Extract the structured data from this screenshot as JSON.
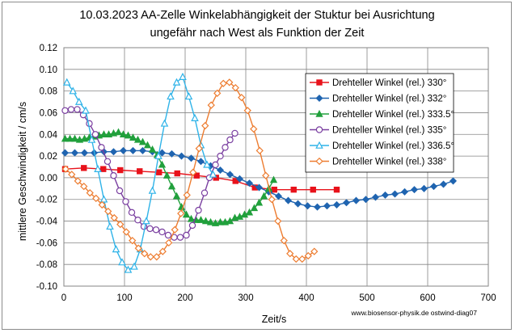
{
  "chart_data": {
    "type": "line",
    "title_line1": "10.03.2023  AA-Zelle Winkelabhängigkeit der Stuktur bei Ausrichtung",
    "title_line2": "ungefähr nach West als Funktion der Zeit",
    "xlabel": "Zeit/s",
    "ylabel": "mittlere Geschwindigkeit  / cm/s",
    "xlim": [
      0,
      700
    ],
    "ylim": [
      -0.1,
      0.12
    ],
    "x_ticks": [
      0,
      100,
      200,
      300,
      400,
      500,
      600,
      700
    ],
    "y_ticks": [
      -0.1,
      -0.08,
      -0.06,
      -0.04,
      -0.02,
      0.0,
      0.02,
      0.04,
      0.06,
      0.08,
      0.1,
      0.12
    ],
    "x_tick_labels": [
      "0",
      "100",
      "200",
      "300",
      "400",
      "500",
      "600",
      "700"
    ],
    "y_tick_labels": [
      "-0.10",
      "-0.08",
      "-0.06",
      "-0.04",
      "-0.02",
      "0.00",
      "0.02",
      "0.04",
      "0.06",
      "0.08",
      "0.10",
      "0.12"
    ],
    "grid": true,
    "legend_position": "top-right",
    "source_note": "www.biosensor-physik.de  ostwind-diag07",
    "series": [
      {
        "name": "Drehteller Winkel (rel.) 330°",
        "color": "#e8121b",
        "marker": "square",
        "x": [
          2,
          33,
          65,
          93,
          125,
          157,
          187,
          219,
          251,
          283,
          315,
          347,
          379,
          411,
          450
        ],
        "y": [
          0.008,
          0.009,
          0.008,
          0.007,
          0.006,
          0.005,
          0.004,
          0.002,
          0.0,
          -0.003,
          -0.009,
          -0.011,
          -0.011,
          -0.011,
          -0.011
        ]
      },
      {
        "name": "Drehteller Winkel (rel.) 332°",
        "color": "#1f64b0",
        "marker": "diamond",
        "x": [
          2,
          18,
          34,
          50,
          66,
          82,
          98,
          114,
          130,
          146,
          162,
          178,
          194,
          210,
          226,
          242,
          258,
          274,
          290,
          306,
          322,
          338,
          354,
          370,
          386,
          402,
          418,
          434,
          450,
          466,
          482,
          498,
          514,
          530,
          546,
          562,
          578,
          594,
          610,
          626,
          642
        ],
        "y": [
          0.023,
          0.023,
          0.023,
          0.023,
          0.024,
          0.024,
          0.025,
          0.025,
          0.025,
          0.024,
          0.023,
          0.022,
          0.02,
          0.018,
          0.015,
          0.011,
          0.007,
          0.003,
          -0.001,
          -0.005,
          -0.009,
          -0.013,
          -0.017,
          -0.021,
          -0.024,
          -0.026,
          -0.027,
          -0.026,
          -0.025,
          -0.023,
          -0.021,
          -0.02,
          -0.018,
          -0.016,
          -0.015,
          -0.013,
          -0.011,
          -0.01,
          -0.008,
          -0.006,
          -0.003
        ]
      },
      {
        "name": "Drehteller Winkel (rel.) 333.5°",
        "color": "#21a03c",
        "marker": "triangle",
        "x": [
          2,
          10,
          18,
          26,
          34,
          42,
          50,
          58,
          66,
          74,
          82,
          90,
          98,
          106,
          114,
          122,
          130,
          138,
          146,
          154,
          162,
          170,
          178,
          186,
          194,
          202,
          210,
          218,
          226,
          234,
          242,
          250,
          258,
          266,
          274,
          282,
          290,
          298,
          306,
          314,
          322,
          330,
          338,
          346
        ],
        "y": [
          0.036,
          0.036,
          0.036,
          0.035,
          0.036,
          0.037,
          0.038,
          0.039,
          0.04,
          0.04,
          0.041,
          0.042,
          0.04,
          0.039,
          0.037,
          0.035,
          0.033,
          0.03,
          0.026,
          0.021,
          0.012,
          0.002,
          -0.008,
          -0.017,
          -0.027,
          -0.034,
          -0.038,
          -0.039,
          -0.039,
          -0.04,
          -0.041,
          -0.042,
          -0.041,
          -0.041,
          -0.04,
          -0.037,
          -0.036,
          -0.034,
          -0.032,
          -0.028,
          -0.023,
          -0.017,
          -0.01,
          -0.002
        ]
      },
      {
        "name": "Drehteller Winkel (rel.) 335°",
        "color": "#7a3fa0",
        "marker": "circle",
        "x": [
          2,
          12,
          22,
          32,
          42,
          52,
          62,
          72,
          82,
          92,
          102,
          112,
          122,
          132,
          142,
          152,
          162,
          172,
          182,
          192,
          202,
          212,
          222,
          232,
          240,
          250,
          258,
          266,
          274,
          282
        ],
        "y": [
          0.062,
          0.063,
          0.063,
          0.058,
          0.05,
          0.04,
          0.028,
          0.015,
          0.002,
          -0.012,
          -0.022,
          -0.032,
          -0.039,
          -0.045,
          -0.047,
          -0.048,
          -0.05,
          -0.053,
          -0.055,
          -0.055,
          -0.053,
          -0.044,
          -0.03,
          -0.014,
          0.0,
          0.012,
          0.02,
          0.028,
          0.035,
          0.041
        ]
      },
      {
        "name": "Drehteller Winkel (rel.) 336.5°",
        "color": "#2fb3e8",
        "marker": "triangle-open",
        "x": [
          5,
          15,
          25,
          36,
          46,
          56,
          66,
          76,
          86,
          96,
          106,
          116,
          126,
          136,
          146,
          156,
          166,
          176,
          186,
          196,
          206,
          216,
          226,
          236,
          246
        ],
        "y": [
          0.088,
          0.08,
          0.07,
          0.062,
          0.035,
          0.008,
          -0.02,
          -0.045,
          -0.066,
          -0.078,
          -0.085,
          -0.082,
          -0.066,
          -0.04,
          -0.012,
          0.02,
          0.05,
          0.075,
          0.088,
          0.093,
          0.075,
          0.055,
          0.03,
          0.012,
          0.003
        ]
      },
      {
        "name": "Drehteller Winkel (rel.) 338°",
        "color": "#ed7d31",
        "marker": "diamond-open",
        "x": [
          3,
          13,
          23,
          33,
          43,
          53,
          63,
          73,
          83,
          93,
          103,
          113,
          123,
          133,
          143,
          153,
          163,
          173,
          183,
          193,
          203,
          213,
          223,
          233,
          243,
          253,
          263,
          273,
          283,
          293,
          303,
          313,
          323,
          333,
          343,
          353,
          363,
          373,
          383,
          393,
          403,
          413
        ],
        "y": [
          0.008,
          0.003,
          -0.003,
          -0.008,
          -0.014,
          -0.019,
          -0.025,
          -0.031,
          -0.037,
          -0.043,
          -0.05,
          -0.058,
          -0.065,
          -0.07,
          -0.073,
          -0.073,
          -0.068,
          -0.06,
          -0.048,
          -0.033,
          -0.016,
          0.005,
          0.027,
          0.048,
          0.067,
          0.078,
          0.087,
          0.088,
          0.083,
          0.074,
          0.062,
          0.045,
          0.025,
          0.002,
          -0.02,
          -0.04,
          -0.058,
          -0.07,
          -0.075,
          -0.075,
          -0.072,
          -0.068
        ]
      }
    ]
  }
}
